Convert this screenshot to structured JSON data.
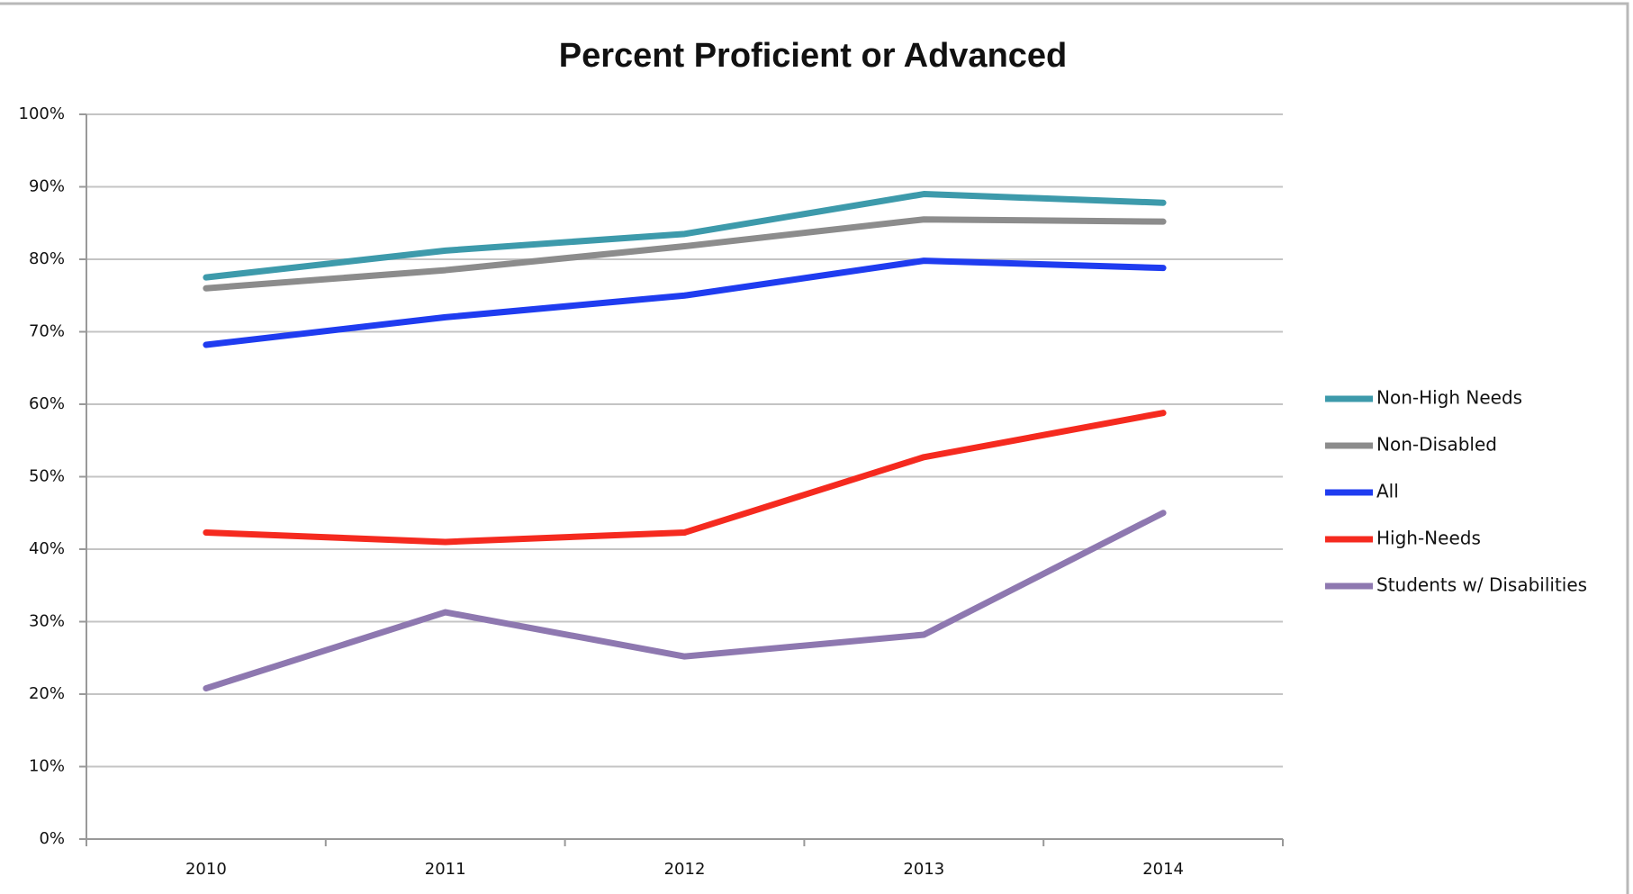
{
  "chart_data": {
    "type": "line",
    "title": "Percent Proficient or Advanced",
    "categories": [
      "2010",
      "2011",
      "2012",
      "2013",
      "2014"
    ],
    "series": [
      {
        "name": "Non-High Needs",
        "color": "#3d9aab",
        "values": [
          77.5,
          81.2,
          83.5,
          89,
          87.8
        ]
      },
      {
        "name": "Non-Disabled",
        "color": "#8c8c8c",
        "values": [
          76,
          78.5,
          81.8,
          85.5,
          85.2
        ]
      },
      {
        "name": "All",
        "color": "#1f3cf0",
        "values": [
          68.2,
          72,
          75,
          79.8,
          78.8
        ]
      },
      {
        "name": "High-Needs",
        "color": "#f52a1f",
        "values": [
          42.3,
          41,
          42.3,
          52.7,
          58.8
        ]
      },
      {
        "name": "Students w/ Disabilities",
        "color": "#8e78b0",
        "values": [
          20.8,
          31.3,
          25.2,
          28.2,
          45
        ]
      }
    ],
    "ylim": [
      0,
      100
    ],
    "yticks": [
      {
        "value": 0,
        "label": "0%"
      },
      {
        "value": 10,
        "label": "10%"
      },
      {
        "value": 20,
        "label": "20%"
      },
      {
        "value": 30,
        "label": "30%"
      },
      {
        "value": 40,
        "label": "40%"
      },
      {
        "value": 50,
        "label": "50%"
      },
      {
        "value": 60,
        "label": "60%"
      },
      {
        "value": 70,
        "label": "70%"
      },
      {
        "value": 80,
        "label": "80%"
      },
      {
        "value": 90,
        "label": "90%"
      },
      {
        "value": 100,
        "label": "100%"
      }
    ],
    "grid": true,
    "legend": "right"
  }
}
